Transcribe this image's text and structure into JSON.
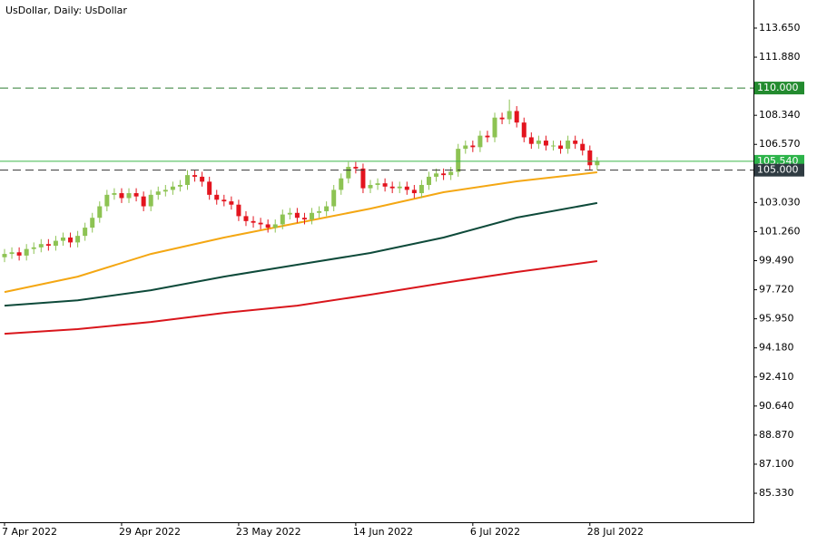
{
  "chart_data": {
    "type": "candlestick",
    "title": "UsDollar, Daily:  UsDollar",
    "categories": [
      "7 Apr 2022",
      null,
      null,
      null,
      null,
      null,
      null,
      null,
      null,
      null,
      null,
      null,
      null,
      null,
      null,
      null,
      "29 Apr 2022",
      null,
      null,
      null,
      null,
      null,
      null,
      null,
      null,
      null,
      null,
      null,
      null,
      null,
      null,
      null,
      "23 May 2022",
      null,
      null,
      null,
      null,
      null,
      null,
      null,
      null,
      null,
      null,
      null,
      null,
      null,
      null,
      null,
      "14 Jun 2022",
      null,
      null,
      null,
      null,
      null,
      null,
      null,
      null,
      null,
      null,
      null,
      null,
      null,
      null,
      null,
      "6 Jul 2022",
      null,
      null,
      null,
      null,
      null,
      null,
      null,
      null,
      null,
      null,
      null,
      null,
      null,
      null,
      null,
      "28 Jul 2022",
      null
    ],
    "open": [
      99.7,
      99.9,
      100.0,
      99.8,
      100.2,
      100.3,
      100.5,
      100.4,
      100.7,
      100.9,
      100.6,
      101.0,
      101.5,
      102.1,
      102.8,
      103.5,
      103.6,
      103.3,
      103.6,
      103.4,
      102.8,
      103.5,
      103.7,
      103.8,
      104.0,
      104.1,
      104.7,
      104.6,
      104.3,
      103.5,
      103.2,
      103.1,
      102.9,
      102.2,
      101.9,
      101.8,
      101.7,
      101.5,
      101.7,
      102.3,
      102.4,
      102.1,
      102.0,
      102.4,
      102.5,
      102.8,
      103.8,
      104.5,
      105.2,
      105.1,
      103.9,
      104.1,
      104.2,
      104.0,
      103.9,
      104.0,
      103.8,
      103.6,
      104.1,
      104.6,
      104.8,
      104.7,
      104.9,
      106.3,
      106.5,
      106.4,
      107.1,
      107.0,
      108.2,
      108.1,
      108.6,
      107.9,
      107.0,
      106.6,
      106.8,
      106.5,
      106.5,
      106.3,
      106.8,
      106.6,
      106.2,
      105.3
    ],
    "high": [
      100.2,
      100.3,
      100.3,
      100.5,
      100.6,
      100.8,
      100.8,
      101.0,
      101.2,
      101.2,
      101.3,
      101.8,
      102.4,
      103.1,
      103.8,
      103.9,
      103.9,
      103.9,
      103.9,
      103.7,
      103.8,
      104.0,
      104.1,
      104.3,
      104.4,
      105.0,
      105.0,
      104.9,
      104.6,
      103.8,
      103.5,
      103.4,
      103.2,
      102.5,
      102.2,
      102.1,
      102.0,
      102.0,
      102.6,
      102.7,
      102.7,
      102.4,
      102.7,
      102.8,
      103.1,
      104.1,
      104.8,
      105.5,
      105.5,
      105.4,
      104.4,
      104.5,
      104.5,
      104.3,
      104.3,
      104.3,
      104.1,
      104.4,
      104.9,
      105.1,
      105.1,
      105.2,
      106.6,
      106.8,
      106.8,
      107.4,
      107.4,
      108.5,
      108.5,
      109.3,
      108.9,
      108.2,
      107.3,
      107.1,
      107.1,
      106.8,
      106.8,
      107.1,
      107.1,
      106.9,
      106.5,
      105.8
    ],
    "low": [
      99.4,
      99.6,
      99.5,
      99.5,
      99.9,
      100.0,
      100.1,
      100.1,
      100.4,
      100.3,
      100.3,
      100.7,
      101.2,
      101.8,
      102.5,
      103.2,
      103.0,
      103.0,
      103.1,
      102.5,
      102.5,
      103.2,
      103.4,
      103.5,
      103.7,
      103.8,
      104.3,
      104.0,
      103.2,
      102.9,
      102.8,
      102.6,
      101.9,
      101.6,
      101.5,
      101.4,
      101.2,
      101.2,
      101.4,
      102.0,
      101.8,
      101.7,
      101.7,
      102.1,
      102.2,
      102.5,
      103.5,
      104.2,
      104.8,
      103.6,
      103.6,
      103.8,
      103.7,
      103.6,
      103.6,
      103.5,
      103.3,
      103.3,
      103.8,
      104.3,
      104.4,
      104.4,
      104.6,
      106.0,
      106.1,
      106.1,
      106.7,
      106.7,
      107.8,
      107.8,
      107.6,
      106.7,
      106.3,
      106.3,
      106.2,
      106.2,
      106.0,
      106.0,
      106.3,
      105.9,
      105.0,
      105.0
    ],
    "close": [
      99.9,
      100.0,
      99.8,
      100.2,
      100.3,
      100.5,
      100.4,
      100.7,
      100.9,
      100.6,
      101.0,
      101.5,
      102.1,
      102.8,
      103.5,
      103.6,
      103.3,
      103.6,
      103.4,
      102.8,
      103.5,
      103.7,
      103.8,
      104.0,
      104.1,
      104.7,
      104.6,
      104.3,
      103.5,
      103.2,
      103.1,
      102.9,
      102.2,
      101.9,
      101.8,
      101.7,
      101.5,
      101.7,
      102.3,
      102.4,
      102.1,
      102.0,
      102.4,
      102.5,
      102.8,
      103.8,
      104.5,
      105.2,
      105.1,
      103.9,
      104.1,
      104.2,
      104.0,
      103.9,
      104.0,
      103.8,
      103.6,
      104.1,
      104.6,
      104.8,
      104.7,
      104.9,
      106.3,
      106.5,
      106.4,
      107.1,
      107.0,
      108.2,
      108.1,
      108.6,
      107.9,
      107.0,
      106.6,
      106.8,
      106.5,
      106.5,
      106.3,
      106.8,
      106.6,
      106.2,
      105.3,
      105.54
    ],
    "up_color": "#8dc353",
    "down_color": "#e3141e",
    "moving_averages": [
      {
        "color": "#f4a713",
        "x": [
          0,
          10,
          20,
          30,
          40,
          50,
          60,
          70,
          81
        ],
        "values": [
          97.58,
          98.52,
          99.9,
          100.9,
          101.78,
          102.66,
          103.66,
          104.32,
          104.87
        ]
      },
      {
        "color": "#0e4a3a",
        "x": [
          0,
          10,
          20,
          30,
          40,
          50,
          60,
          70,
          81
        ],
        "values": [
          96.75,
          97.08,
          97.69,
          98.52,
          99.24,
          99.96,
          100.9,
          102.11,
          103.0
        ]
      },
      {
        "color": "#d9161c",
        "x": [
          0,
          10,
          20,
          30,
          40,
          50,
          60,
          70,
          81
        ],
        "values": [
          95.04,
          95.32,
          95.76,
          96.31,
          96.75,
          97.42,
          98.13,
          98.8,
          99.46
        ]
      }
    ],
    "levels": [
      {
        "value": 110,
        "label": "110.000",
        "color": "#2f7d32",
        "box_color": "#238b2f",
        "dashed": true
      },
      {
        "value": 105.54,
        "label": "105.540",
        "color": "#3cb64a",
        "box_color": "#2db34a",
        "dashed": false
      },
      {
        "value": 105,
        "label": "105.000",
        "color": "#333333",
        "box_color": "#2f3b42",
        "dashed": true
      }
    ],
    "ylim": [
      83.62,
      115.36
    ],
    "yticks": [
      {
        "value": 113.65,
        "label": "113.650"
      },
      {
        "value": 111.88,
        "label": "111.880"
      },
      {
        "value": 108.34,
        "label": "108.340"
      },
      {
        "value": 106.57,
        "label": "106.570"
      },
      {
        "value": 103.03,
        "label": "103.030"
      },
      {
        "value": 101.26,
        "label": "101.260"
      },
      {
        "value": 99.49,
        "label": "99.490"
      },
      {
        "value": 97.72,
        "label": "97.720"
      },
      {
        "value": 95.95,
        "label": "95.950"
      },
      {
        "value": 94.18,
        "label": "94.180"
      },
      {
        "value": 92.41,
        "label": "92.410"
      },
      {
        "value": 90.64,
        "label": "90.640"
      },
      {
        "value": 88.87,
        "label": "88.870"
      },
      {
        "value": 87.1,
        "label": "87.100"
      },
      {
        "value": 85.33,
        "label": "85.330"
      }
    ]
  }
}
